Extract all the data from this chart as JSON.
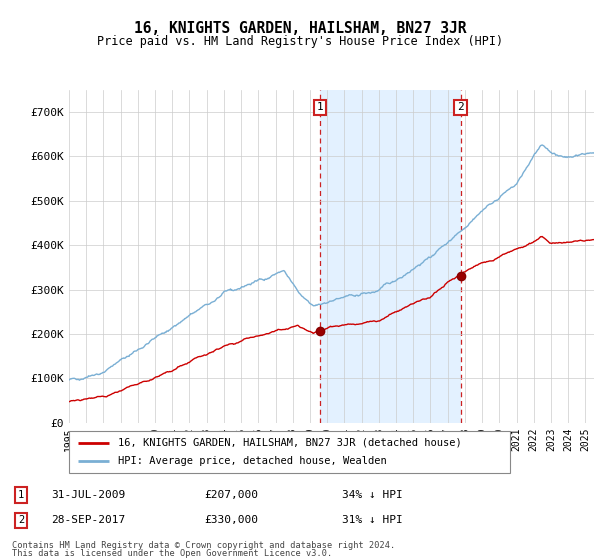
{
  "title": "16, KNIGHTS GARDEN, HAILSHAM, BN27 3JR",
  "subtitle": "Price paid vs. HM Land Registry's House Price Index (HPI)",
  "hpi_color": "#7aafd4",
  "price_color": "#cc0000",
  "shade_color": "#ddeeff",
  "background_color": "#f0f4ff",
  "sale1_date": 2009.58,
  "sale1_price": 207000,
  "sale2_date": 2017.75,
  "sale2_price": 330000,
  "legend_line1": "16, KNIGHTS GARDEN, HAILSHAM, BN27 3JR (detached house)",
  "legend_line2": "HPI: Average price, detached house, Wealden",
  "footer1": "Contains HM Land Registry data © Crown copyright and database right 2024.",
  "footer2": "This data is licensed under the Open Government Licence v3.0.",
  "ylim": [
    0,
    750000
  ],
  "xlim_start": 1995.0,
  "xlim_end": 2025.5
}
